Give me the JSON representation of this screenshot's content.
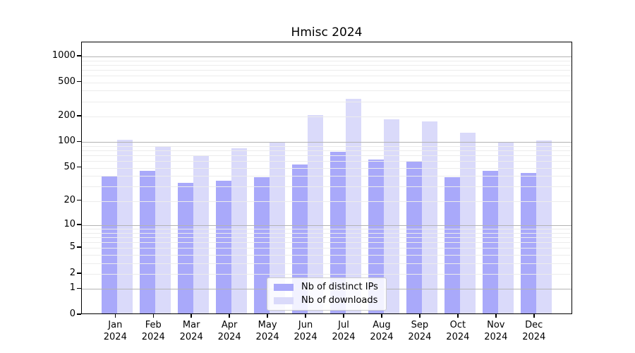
{
  "chart_data": {
    "type": "bar",
    "title": "Hmisc 2024",
    "categories": [
      "Jan",
      "Feb",
      "Mar",
      "Apr",
      "May",
      "Jun",
      "Jul",
      "Aug",
      "Sep",
      "Oct",
      "Nov",
      "Dec"
    ],
    "category_year": "2024",
    "series": [
      {
        "name": "Nb of distinct IPs",
        "slug": "distinct-ips",
        "color": "#a9a9fa",
        "values": [
          38,
          44,
          32,
          34,
          37,
          53,
          74,
          60,
          58,
          37,
          44,
          42
        ]
      },
      {
        "name": "Nb of downloads",
        "slug": "downloads",
        "color": "#dadafa",
        "values": [
          103,
          87,
          68,
          82,
          98,
          200,
          310,
          180,
          168,
          124,
          98,
          100
        ]
      }
    ],
    "yscale": "log1p",
    "yticks": [
      1000,
      500,
      200,
      100,
      50,
      20,
      10,
      5,
      2,
      1,
      0
    ],
    "ylim": [
      0,
      1460
    ],
    "xlabel": "",
    "ylabel": "",
    "grid": "major and minor horizontal lines, drawn over bars",
    "legend_position": "lower center",
    "colors": {
      "major_grid": "#b3b3b3",
      "minor_grid": "#ececec",
      "spine": "#000000",
      "legend_border": "#cccccc",
      "legend_background": "rgba(255,255,255,0.85)"
    }
  }
}
